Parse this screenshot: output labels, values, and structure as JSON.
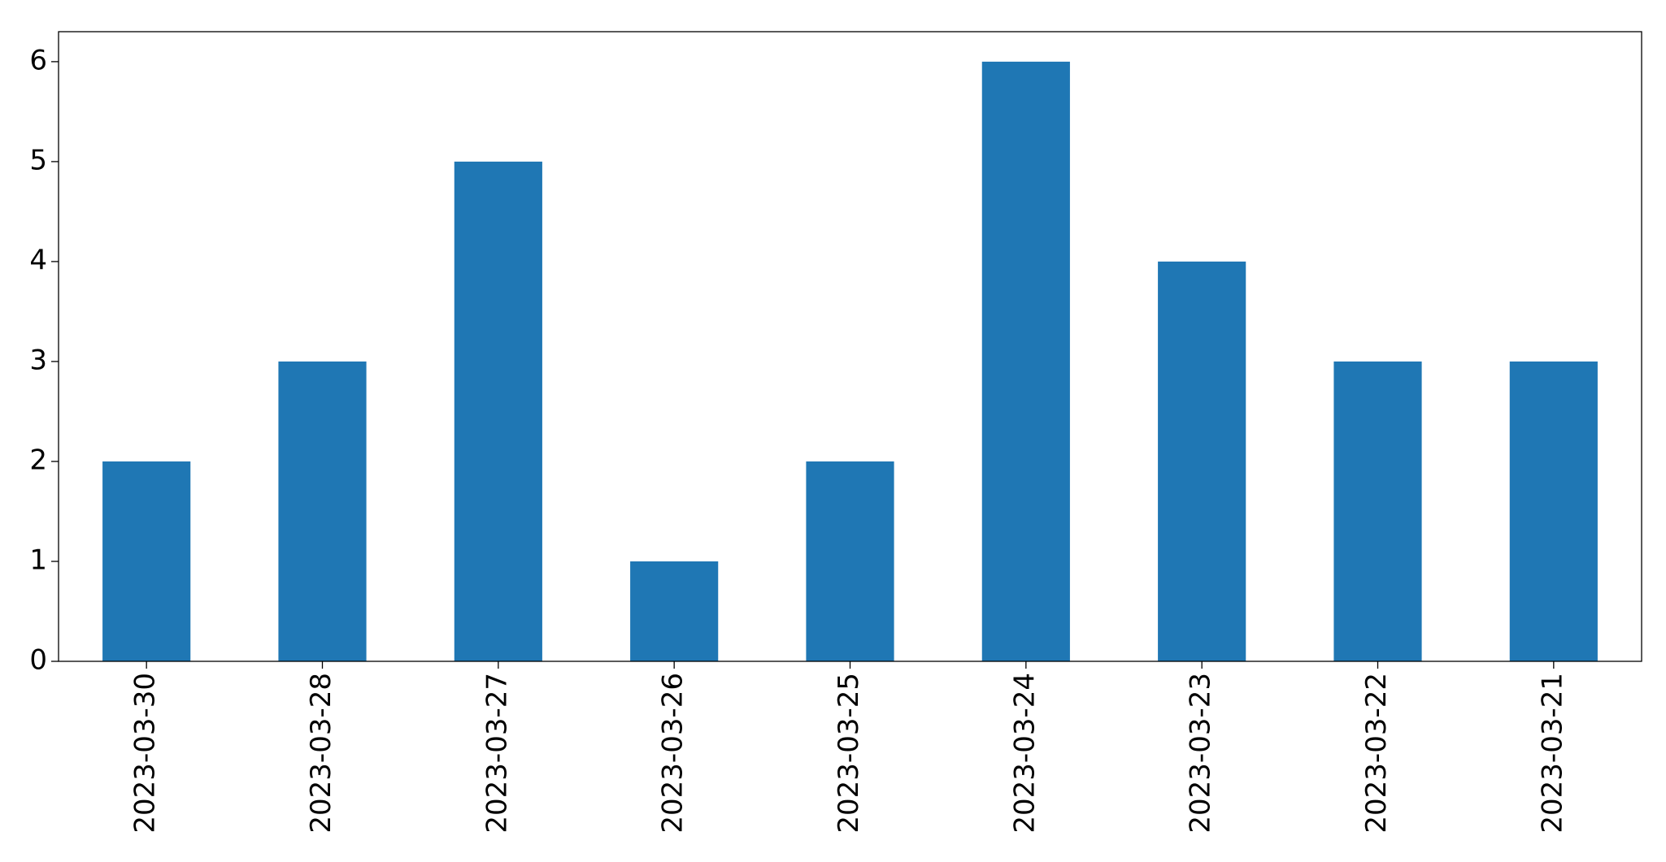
{
  "chart_data": {
    "type": "bar",
    "categories": [
      "2023-03-30",
      "2023-03-28",
      "2023-03-27",
      "2023-03-26",
      "2023-03-25",
      "2023-03-24",
      "2023-03-23",
      "2023-03-22",
      "2023-03-21"
    ],
    "values": [
      2,
      3,
      5,
      1,
      2,
      6,
      4,
      3,
      3
    ],
    "color": "#1f77b4",
    "ylim": [
      0,
      6.3
    ],
    "yticks": [
      0,
      1,
      2,
      3,
      4,
      5,
      6
    ],
    "grid": false
  }
}
